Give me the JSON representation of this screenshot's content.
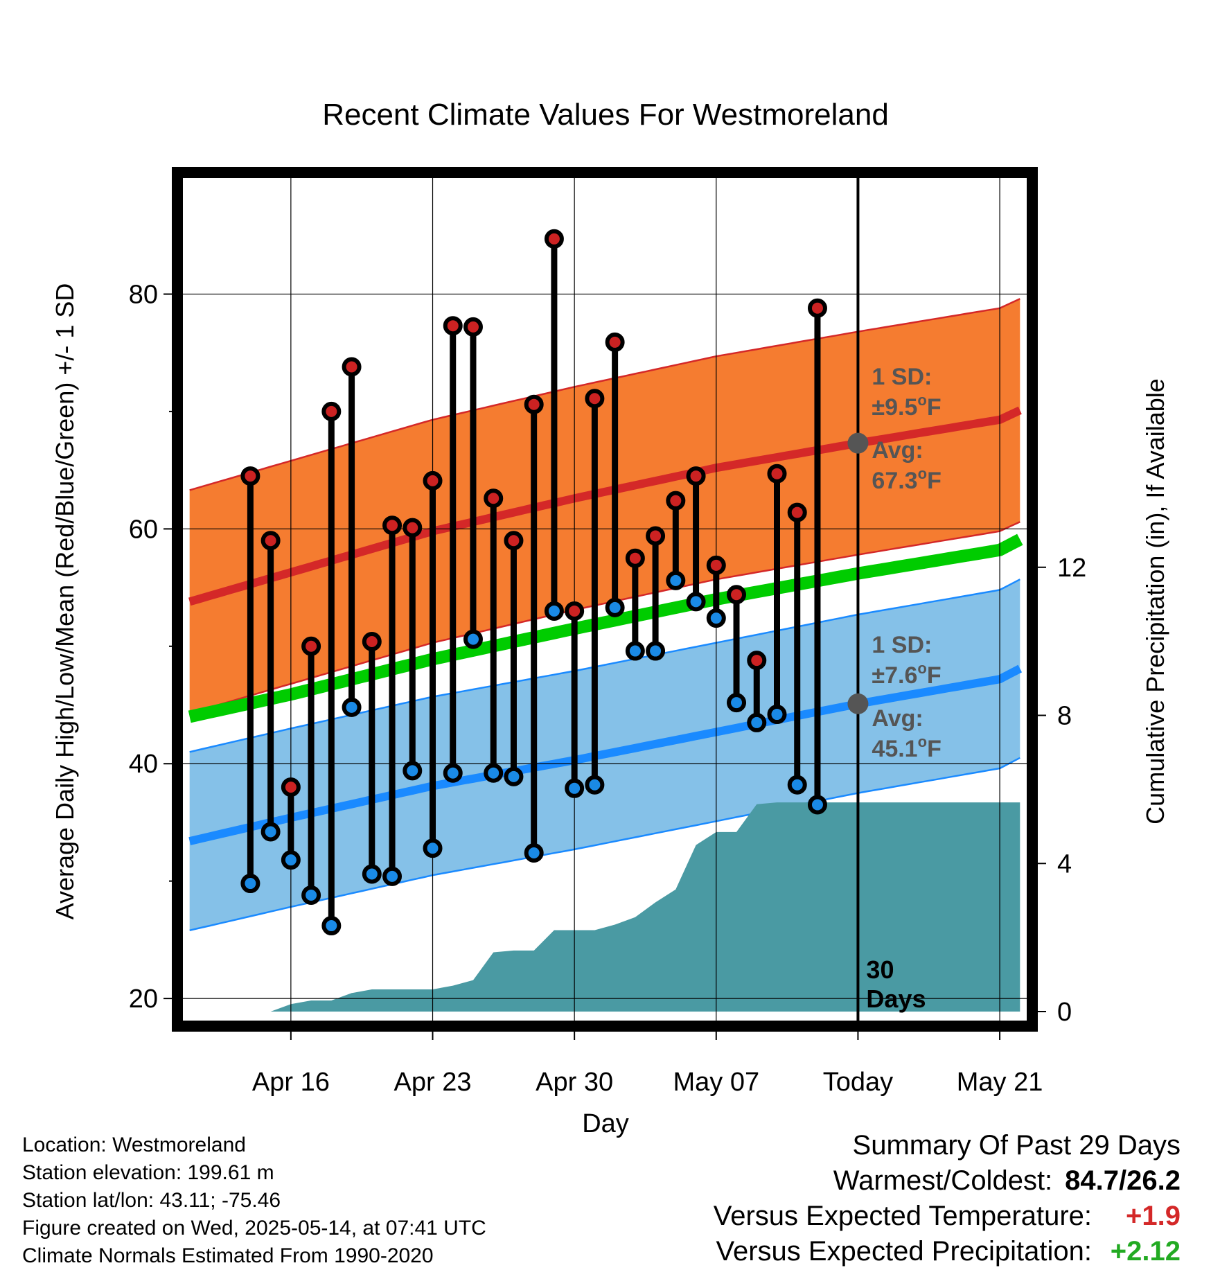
{
  "chart_data": {
    "type": "line",
    "title": "Recent Climate Values For Westmoreland",
    "xlabel": "Day",
    "ylabel": "Average Daily High/Low/Mean (Red/Blue/Green) +/- 1 SD",
    "y2label": "Cumulative Precipitation (in), If Available",
    "ylim": [
      18,
      90
    ],
    "y2lim": [
      -0.28,
      22.55
    ],
    "xlim": [
      -3.4,
      38.4
    ],
    "x_ticks": [
      {
        "day": 2,
        "label": "Apr 16"
      },
      {
        "day": 9,
        "label": "Apr 23"
      },
      {
        "day": 16,
        "label": "Apr 30"
      },
      {
        "day": 23,
        "label": "May 07"
      },
      {
        "day": 30,
        "label": "Today"
      },
      {
        "day": 37,
        "label": "May 21"
      }
    ],
    "y_ticks": [
      20,
      40,
      60,
      80
    ],
    "y2_ticks": [
      0,
      4,
      8,
      12
    ],
    "grid": true,
    "today_label": [
      "30",
      "Days"
    ],
    "daily": [
      {
        "day": 0,
        "high": 64.5,
        "low": 29.8
      },
      {
        "day": 1,
        "high": 59.0,
        "low": 34.2
      },
      {
        "day": 2,
        "high": 38.0,
        "low": 31.8
      },
      {
        "day": 3,
        "high": 50.0,
        "low": 28.8
      },
      {
        "day": 4,
        "high": 70.0,
        "low": 26.2
      },
      {
        "day": 5,
        "high": 73.8,
        "low": 44.8
      },
      {
        "day": 6,
        "high": 50.4,
        "low": 30.6
      },
      {
        "day": 7,
        "high": 60.3,
        "low": 30.4
      },
      {
        "day": 8,
        "high": 60.1,
        "low": 39.4
      },
      {
        "day": 9,
        "high": 64.1,
        "low": 32.8
      },
      {
        "day": 10,
        "high": 77.3,
        "low": 39.2
      },
      {
        "day": 11,
        "high": 77.2,
        "low": 50.6
      },
      {
        "day": 12,
        "high": 62.6,
        "low": 39.2
      },
      {
        "day": 13,
        "high": 59.0,
        "low": 38.9
      },
      {
        "day": 14,
        "high": 70.6,
        "low": 32.4
      },
      {
        "day": 15,
        "high": 84.7,
        "low": 53.0
      },
      {
        "day": 16,
        "high": 53.0,
        "low": 37.9
      },
      {
        "day": 17,
        "high": 71.1,
        "low": 38.2
      },
      {
        "day": 18,
        "high": 75.9,
        "low": 53.3
      },
      {
        "day": 19,
        "high": 57.5,
        "low": 49.6
      },
      {
        "day": 20,
        "high": 59.4,
        "low": 49.6
      },
      {
        "day": 21,
        "high": 62.4,
        "low": 55.6
      },
      {
        "day": 22,
        "high": 64.5,
        "low": 53.8
      },
      {
        "day": 23,
        "high": 56.9,
        "low": 52.4
      },
      {
        "day": 24,
        "high": 54.4,
        "low": 45.2
      },
      {
        "day": 25,
        "high": 48.8,
        "low": 43.5
      },
      {
        "day": 26,
        "high": 64.7,
        "low": 44.2
      },
      {
        "day": 27,
        "high": 61.4,
        "low": 38.2
      },
      {
        "day": 28,
        "high": 78.8,
        "low": 36.5
      }
    ],
    "normals": [
      {
        "day": -3,
        "high_avg": 53.8,
        "low_avg": 33.4,
        "mean": 44.0
      },
      {
        "day": 2,
        "high_avg": 56.3,
        "low_avg": 35.4,
        "mean": 45.9
      },
      {
        "day": 9,
        "high_avg": 59.8,
        "low_avg": 38.1,
        "mean": 48.9
      },
      {
        "day": 16,
        "high_avg": 62.6,
        "low_avg": 40.3,
        "mean": 51.5
      },
      {
        "day": 23,
        "high_avg": 65.2,
        "low_avg": 42.7,
        "mean": 54.0
      },
      {
        "day": 30,
        "high_avg": 67.3,
        "low_avg": 45.1,
        "mean": 56.2
      },
      {
        "day": 37,
        "high_avg": 69.3,
        "low_avg": 47.2,
        "mean": 58.2
      },
      {
        "day": 38,
        "high_avg": 70.1,
        "low_avg": 48.1,
        "mean": 59.1
      }
    ],
    "sd_high": 9.5,
    "sd_low": 7.6,
    "annotations": {
      "high": {
        "sd_label": "1 SD:",
        "sd_value": "±9.5",
        "avg_label": "Avg:",
        "avg_value": "67.3",
        "unit": "F",
        "deg": "o"
      },
      "low": {
        "sd_label": "1 SD:",
        "sd_value": "±7.6",
        "avg_label": "Avg:",
        "avg_value": "45.1",
        "unit": "F",
        "deg": "o"
      }
    },
    "precip_cumulative": [
      {
        "day": -3,
        "value": 0
      },
      {
        "day": 1,
        "value": 0
      },
      {
        "day": 2,
        "value": 0.2
      },
      {
        "day": 3,
        "value": 0.3
      },
      {
        "day": 4,
        "value": 0.3
      },
      {
        "day": 5,
        "value": 0.5
      },
      {
        "day": 6,
        "value": 0.6
      },
      {
        "day": 7,
        "value": 0.6
      },
      {
        "day": 8,
        "value": 0.6
      },
      {
        "day": 9,
        "value": 0.6
      },
      {
        "day": 10,
        "value": 0.7
      },
      {
        "day": 11,
        "value": 0.85
      },
      {
        "day": 12,
        "value": 1.6
      },
      {
        "day": 13,
        "value": 1.65
      },
      {
        "day": 14,
        "value": 1.65
      },
      {
        "day": 15,
        "value": 2.2
      },
      {
        "day": 16,
        "value": 2.2
      },
      {
        "day": 17,
        "value": 2.2
      },
      {
        "day": 18,
        "value": 2.35
      },
      {
        "day": 19,
        "value": 2.55
      },
      {
        "day": 20,
        "value": 2.95
      },
      {
        "day": 21,
        "value": 3.3
      },
      {
        "day": 22,
        "value": 4.5
      },
      {
        "day": 23,
        "value": 4.85
      },
      {
        "day": 24,
        "value": 4.85
      },
      {
        "day": 25,
        "value": 5.6
      },
      {
        "day": 26,
        "value": 5.65
      },
      {
        "day": 38,
        "value": 5.65
      }
    ],
    "colors": {
      "high_band": "#f57c30",
      "high_line": "#d42828",
      "low_band": "#85c1e8",
      "low_line": "#1a8aff",
      "mean_line": "#00cc00",
      "precip": "#4a9aa3",
      "high_dot": "#cc2222",
      "low_dot": "#1a8ae6",
      "annotation": "#555555"
    }
  },
  "info": {
    "location": "Location: Westmoreland",
    "elevation": "Station elevation: 199.61 m",
    "latlon": "Station lat/lon: 43.11; -75.46",
    "created": "Figure created on Wed, 2025-05-14, at 07:41 UTC",
    "normals": "Climate Normals Estimated From 1990-2020"
  },
  "summary": {
    "title": "Summary Of Past 29 Days",
    "warmest_label": "Warmest/Coldest:",
    "warmest_value": "84.7/26.2",
    "temp_label": "Versus Expected Temperature:",
    "temp_value": "+1.9",
    "temp_color": "#d42828",
    "precip_label": "Versus Expected Precipitation:",
    "precip_value": "+2.12",
    "precip_color": "#22aa22"
  }
}
